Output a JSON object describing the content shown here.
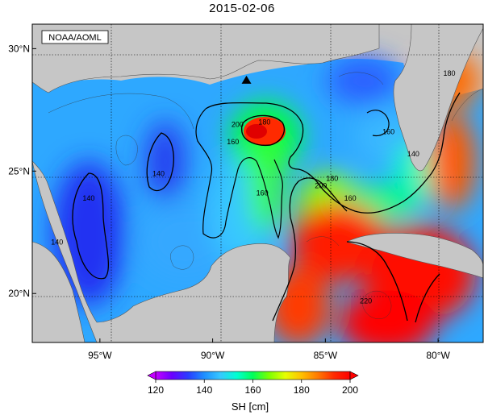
{
  "title": "2015-02-06",
  "credit": "NOAA/AOML",
  "map": {
    "lon_range": [
      -98,
      -78
    ],
    "lat_range": [
      18,
      31
    ],
    "lon_ticks": [
      {
        "value": -95,
        "label": "95°W"
      },
      {
        "value": -90,
        "label": "90°W"
      },
      {
        "value": -85,
        "label": "85°W"
      },
      {
        "value": -80,
        "label": "80°W"
      }
    ],
    "lat_ticks": [
      {
        "value": 30,
        "label": "30°N"
      },
      {
        "value": 25,
        "label": "25°N"
      },
      {
        "value": 20,
        "label": "20°N"
      }
    ],
    "marker": {
      "lon": -88.5,
      "lat": 28.7,
      "symbol": "triangle"
    },
    "contour_labels": [
      {
        "text": "200",
        "lon": -88.9,
        "lat": 26.8
      },
      {
        "text": "180",
        "lon": -87.7,
        "lat": 26.9
      },
      {
        "text": "160",
        "lon": -89.1,
        "lat": 26.1
      },
      {
        "text": "160",
        "lon": -87.8,
        "lat": 24.0
      },
      {
        "text": "140",
        "lon": -92.4,
        "lat": 24.8
      },
      {
        "text": "140",
        "lon": -95.5,
        "lat": 23.8
      },
      {
        "text": "140",
        "lon": -96.9,
        "lat": 22.0
      },
      {
        "text": "160",
        "lon": -82.2,
        "lat": 26.5
      },
      {
        "text": "140",
        "lon": -81.1,
        "lat": 25.6
      },
      {
        "text": "180",
        "lon": -79.5,
        "lat": 28.9
      },
      {
        "text": "180",
        "lon": -84.7,
        "lat": 24.6
      },
      {
        "text": "200",
        "lon": -85.2,
        "lat": 24.3
      },
      {
        "text": "160",
        "lon": -83.9,
        "lat": 23.8
      },
      {
        "text": "220",
        "lon": -83.2,
        "lat": 19.6
      }
    ]
  },
  "colorbar": {
    "min": 120,
    "max": 200,
    "ticks": [
      "120",
      "140",
      "160",
      "180",
      "200"
    ],
    "label": "SH [cm]",
    "colors": [
      "#c400ff",
      "#6a00ff",
      "#2a3cff",
      "#1e8fff",
      "#36c8ff",
      "#00ffd2",
      "#00ff5a",
      "#7cff00",
      "#e6ff00",
      "#ffc000",
      "#ff7a00",
      "#ff2a00",
      "#ff0000"
    ]
  },
  "colors": {
    "land": "#c6c6c6",
    "frame": "#000000"
  }
}
